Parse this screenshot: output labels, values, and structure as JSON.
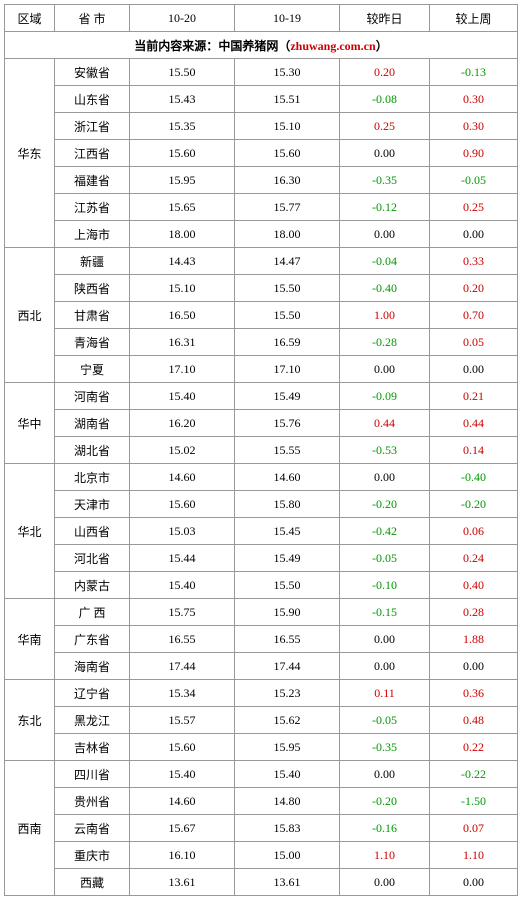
{
  "headers": {
    "region": "区域",
    "province": "省 市",
    "d1": "10-20",
    "d2": "10-19",
    "vs_yesterday": "较昨日",
    "vs_lastweek": "较上周"
  },
  "source": {
    "prefix": "当前内容来源：",
    "name": "中国养猪网",
    "open": "（",
    "url": "zhuwang.com.cn",
    "close": "）"
  },
  "colors": {
    "positive": "#cc0000",
    "negative": "#009900",
    "neutral": "#000000",
    "border": "#999999"
  },
  "regions": [
    {
      "name": "华东",
      "rows": [
        {
          "prov": "安徽省",
          "d1": "15.50",
          "d2": "15.30",
          "yd": "0.20",
          "wk": "-0.13"
        },
        {
          "prov": "山东省",
          "d1": "15.43",
          "d2": "15.51",
          "yd": "-0.08",
          "wk": "0.30"
        },
        {
          "prov": "浙江省",
          "d1": "15.35",
          "d2": "15.10",
          "yd": "0.25",
          "wk": "0.30"
        },
        {
          "prov": "江西省",
          "d1": "15.60",
          "d2": "15.60",
          "yd": "0.00",
          "wk": "0.90"
        },
        {
          "prov": "福建省",
          "d1": "15.95",
          "d2": "16.30",
          "yd": "-0.35",
          "wk": "-0.05"
        },
        {
          "prov": "江苏省",
          "d1": "15.65",
          "d2": "15.77",
          "yd": "-0.12",
          "wk": "0.25"
        },
        {
          "prov": "上海市",
          "d1": "18.00",
          "d2": "18.00",
          "yd": "0.00",
          "wk": "0.00"
        }
      ]
    },
    {
      "name": "西北",
      "rows": [
        {
          "prov": "新疆",
          "d1": "14.43",
          "d2": "14.47",
          "yd": "-0.04",
          "wk": "0.33"
        },
        {
          "prov": "陕西省",
          "d1": "15.10",
          "d2": "15.50",
          "yd": "-0.40",
          "wk": "0.20"
        },
        {
          "prov": "甘肃省",
          "d1": "16.50",
          "d2": "15.50",
          "yd": "1.00",
          "wk": "0.70"
        },
        {
          "prov": "青海省",
          "d1": "16.31",
          "d2": "16.59",
          "yd": "-0.28",
          "wk": "0.05"
        },
        {
          "prov": "宁夏",
          "d1": "17.10",
          "d2": "17.10",
          "yd": "0.00",
          "wk": "0.00"
        }
      ]
    },
    {
      "name": "华中",
      "rows": [
        {
          "prov": "河南省",
          "d1": "15.40",
          "d2": "15.49",
          "yd": "-0.09",
          "wk": "0.21"
        },
        {
          "prov": "湖南省",
          "d1": "16.20",
          "d2": "15.76",
          "yd": "0.44",
          "wk": "0.44"
        },
        {
          "prov": "湖北省",
          "d1": "15.02",
          "d2": "15.55",
          "yd": "-0.53",
          "wk": "0.14"
        }
      ]
    },
    {
      "name": "华北",
      "rows": [
        {
          "prov": "北京市",
          "d1": "14.60",
          "d2": "14.60",
          "yd": "0.00",
          "wk": "-0.40"
        },
        {
          "prov": "天津市",
          "d1": "15.60",
          "d2": "15.80",
          "yd": "-0.20",
          "wk": "-0.20"
        },
        {
          "prov": "山西省",
          "d1": "15.03",
          "d2": "15.45",
          "yd": "-0.42",
          "wk": "0.06"
        },
        {
          "prov": "河北省",
          "d1": "15.44",
          "d2": "15.49",
          "yd": "-0.05",
          "wk": "0.24"
        },
        {
          "prov": "内蒙古",
          "d1": "15.40",
          "d2": "15.50",
          "yd": "-0.10",
          "wk": "0.40"
        }
      ]
    },
    {
      "name": "华南",
      "rows": [
        {
          "prov": "广 西",
          "d1": "15.75",
          "d2": "15.90",
          "yd": "-0.15",
          "wk": "0.28"
        },
        {
          "prov": "广东省",
          "d1": "16.55",
          "d2": "16.55",
          "yd": "0.00",
          "wk": "1.88"
        },
        {
          "prov": "海南省",
          "d1": "17.44",
          "d2": "17.44",
          "yd": "0.00",
          "wk": "0.00"
        }
      ]
    },
    {
      "name": "东北",
      "rows": [
        {
          "prov": "辽宁省",
          "d1": "15.34",
          "d2": "15.23",
          "yd": "0.11",
          "wk": "0.36"
        },
        {
          "prov": "黑龙江",
          "d1": "15.57",
          "d2": "15.62",
          "yd": "-0.05",
          "wk": "0.48"
        },
        {
          "prov": "吉林省",
          "d1": "15.60",
          "d2": "15.95",
          "yd": "-0.35",
          "wk": "0.22"
        }
      ]
    },
    {
      "name": "西南",
      "rows": [
        {
          "prov": "四川省",
          "d1": "15.40",
          "d2": "15.40",
          "yd": "0.00",
          "wk": "-0.22"
        },
        {
          "prov": "贵州省",
          "d1": "14.60",
          "d2": "14.80",
          "yd": "-0.20",
          "wk": "-1.50"
        },
        {
          "prov": "云南省",
          "d1": "15.67",
          "d2": "15.83",
          "yd": "-0.16",
          "wk": "0.07"
        },
        {
          "prov": "重庆市",
          "d1": "16.10",
          "d2": "15.00",
          "yd": "1.10",
          "wk": "1.10"
        },
        {
          "prov": "西藏",
          "d1": "13.61",
          "d2": "13.61",
          "yd": "0.00",
          "wk": "0.00"
        }
      ]
    }
  ]
}
